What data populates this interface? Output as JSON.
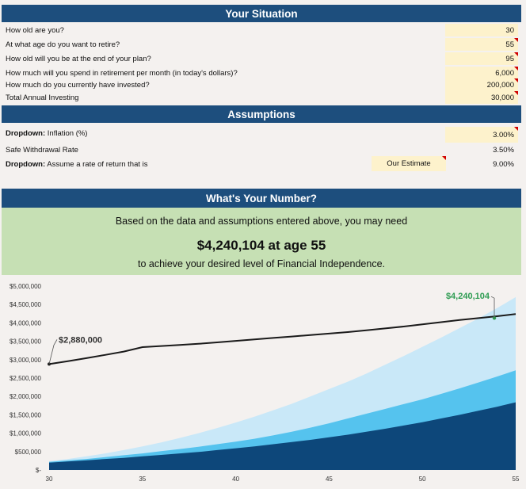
{
  "situation": {
    "title": "Your Situation",
    "rows": [
      {
        "label": "How old are you?",
        "value": "30"
      },
      {
        "label": "At what age do you want to retire?",
        "value": "55"
      },
      {
        "label": "How old will you be at the end of your plan?",
        "value": "95"
      },
      {
        "label": "How much will you spend in retirement per month (in today's dollars)?",
        "currency": "$",
        "value": "6,000"
      },
      {
        "label": "How much do you currently have invested?",
        "currency": "$",
        "value": "200,000"
      },
      {
        "label": "Total Annual Investing",
        "currency": "$",
        "value": "30,000"
      }
    ]
  },
  "assumptions": {
    "title": "Assumptions",
    "inflation": {
      "bold": "Dropdown:",
      "label": " Inflation (%)",
      "value": "3.00%"
    },
    "withdrawal": {
      "label": "Safe Withdrawal Rate",
      "value": "3.50%"
    },
    "return_rate": {
      "bold": "Dropdown:",
      "label": " Assume a rate of return that is",
      "option": "Our Estimate",
      "value": "9.00%"
    }
  },
  "number": {
    "title": "What's Your Number?",
    "line1": "Based on the data and assumptions entered above, you may need",
    "big": "$4,240,104 at age 55",
    "line3": "to achieve your desired level of Financial Independence."
  },
  "colors": {
    "header": "#1d4e7d",
    "input": "#fdf2cc",
    "result_bg": "#c6e0b4",
    "area_light": "#c9e8f8",
    "area_mid": "#55c3ee",
    "area_dark": "#0d477a",
    "target_line": "#1a1a1a",
    "callout_green": "#2e9c52"
  },
  "chart_data": {
    "type": "area",
    "x": [
      30,
      31,
      32,
      33,
      34,
      35,
      36,
      37,
      38,
      39,
      40,
      41,
      42,
      43,
      44,
      45,
      46,
      47,
      48,
      49,
      50,
      51,
      52,
      53,
      54,
      55
    ],
    "xticks": [
      "30",
      "35",
      "40",
      "45",
      "50",
      "55"
    ],
    "yticks": [
      "$-",
      "$500,000",
      "$1,000,000",
      "$1,500,000",
      "$2,000,000",
      "$2,500,000",
      "$3,000,000",
      "$3,500,000",
      "$4,000,000",
      "$4,500,000",
      "$5,000,000"
    ],
    "ylim": [
      0,
      5000000
    ],
    "series": [
      {
        "role": "upper",
        "values": [
          240000,
          300000,
          370000,
          450000,
          540000,
          640000,
          750000,
          870000,
          1000000,
          1140000,
          1290000,
          1450000,
          1620000,
          1800000,
          2000000,
          2200000,
          2400000,
          2620000,
          2860000,
          3100000,
          3350000,
          3600000,
          3860000,
          4120000,
          4400000,
          4700000
        ]
      },
      {
        "role": "middle",
        "values": [
          220000,
          260000,
          300000,
          350000,
          400000,
          450000,
          510000,
          570000,
          630000,
          700000,
          770000,
          850000,
          940000,
          1040000,
          1150000,
          1270000,
          1400000,
          1530000,
          1660000,
          1790000,
          1920000,
          2070000,
          2220000,
          2380000,
          2540000,
          2710000
        ]
      },
      {
        "role": "lower",
        "values": [
          200000,
          230000,
          260000,
          300000,
          330000,
          370000,
          410000,
          450000,
          490000,
          540000,
          590000,
          640000,
          700000,
          760000,
          820000,
          890000,
          960000,
          1040000,
          1120000,
          1210000,
          1300000,
          1400000,
          1500000,
          1610000,
          1720000,
          1840000
        ]
      },
      {
        "role": "target",
        "values": [
          2880000,
          2960000,
          3040000,
          3130000,
          3220000,
          3340000,
          3370000,
          3400000,
          3430000,
          3470000,
          3510000,
          3550000,
          3590000,
          3630000,
          3670000,
          3710000,
          3750000,
          3800000,
          3850000,
          3900000,
          3960000,
          4020000,
          4080000,
          4130000,
          4180000,
          4240104
        ]
      }
    ],
    "annotations": [
      {
        "text": "$2,880,000",
        "x": 30,
        "y": 2880000
      },
      {
        "text": "$4,240,104",
        "x": 55,
        "y": 4240104
      }
    ]
  }
}
